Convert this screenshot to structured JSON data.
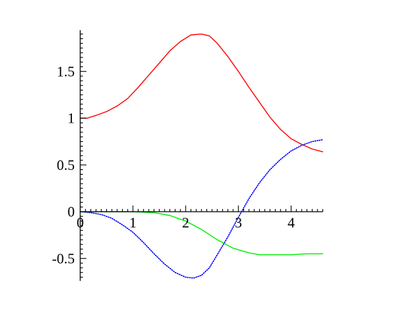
{
  "chart_data": {
    "type": "line",
    "title": "",
    "xlabel": "",
    "ylabel": "",
    "xlim": [
      0,
      4.6
    ],
    "ylim": [
      -0.75,
      2.0
    ],
    "grid": false,
    "legend": "none",
    "x_ticks": [
      {
        "value": 0,
        "label": "0"
      },
      {
        "value": 1,
        "label": "1"
      },
      {
        "value": 2,
        "label": "2"
      },
      {
        "value": 3,
        "label": "3"
      },
      {
        "value": 4,
        "label": "4"
      }
    ],
    "y_ticks": [
      {
        "value": -0.5,
        "label": "-0.5"
      },
      {
        "value": 0,
        "label": "0"
      },
      {
        "value": 0.5,
        "label": "0.5"
      },
      {
        "value": 1,
        "label": "1"
      },
      {
        "value": 1.5,
        "label": "1.5"
      }
    ],
    "series": [
      {
        "color": "#ff0000",
        "style": "solid",
        "x": [
          0,
          0.13,
          0.3,
          0.5,
          0.7,
          0.9,
          1.1,
          1.3,
          1.5,
          1.7,
          1.9,
          2.1,
          2.3,
          2.45,
          2.6,
          2.8,
          3.0,
          3.2,
          3.4,
          3.6,
          3.8,
          4.0,
          4.2,
          4.4,
          4.6
        ],
        "y": [
          1.0,
          1.0,
          1.03,
          1.07,
          1.13,
          1.21,
          1.33,
          1.46,
          1.59,
          1.72,
          1.82,
          1.89,
          1.9,
          1.88,
          1.8,
          1.66,
          1.5,
          1.33,
          1.17,
          1.01,
          0.88,
          0.78,
          0.72,
          0.67,
          0.64
        ]
      },
      {
        "color": "#0000ff",
        "style": "dotted",
        "x": [
          0,
          0.2,
          0.4,
          0.6,
          0.8,
          1.0,
          1.2,
          1.4,
          1.6,
          1.8,
          2.0,
          2.15,
          2.3,
          2.45,
          2.6,
          2.8,
          3.0,
          3.2,
          3.4,
          3.6,
          3.8,
          4.0,
          4.2,
          4.4,
          4.6
        ],
        "y": [
          0.0,
          -0.01,
          -0.03,
          -0.07,
          -0.14,
          -0.22,
          -0.33,
          -0.45,
          -0.56,
          -0.65,
          -0.7,
          -0.71,
          -0.68,
          -0.6,
          -0.46,
          -0.27,
          -0.06,
          0.14,
          0.31,
          0.45,
          0.56,
          0.65,
          0.71,
          0.75,
          0.77
        ]
      },
      {
        "color": "#00ee00",
        "style": "solid",
        "x": [
          0,
          0.5,
          1.0,
          1.4,
          1.7,
          2.0,
          2.3,
          2.6,
          2.9,
          3.2,
          3.4,
          3.6,
          3.8,
          4.0,
          4.3,
          4.6
        ],
        "y": [
          0.0,
          0.0,
          0.0,
          -0.01,
          -0.04,
          -0.1,
          -0.19,
          -0.3,
          -0.39,
          -0.44,
          -0.46,
          -0.46,
          -0.46,
          -0.46,
          -0.45,
          -0.45
        ]
      }
    ]
  }
}
